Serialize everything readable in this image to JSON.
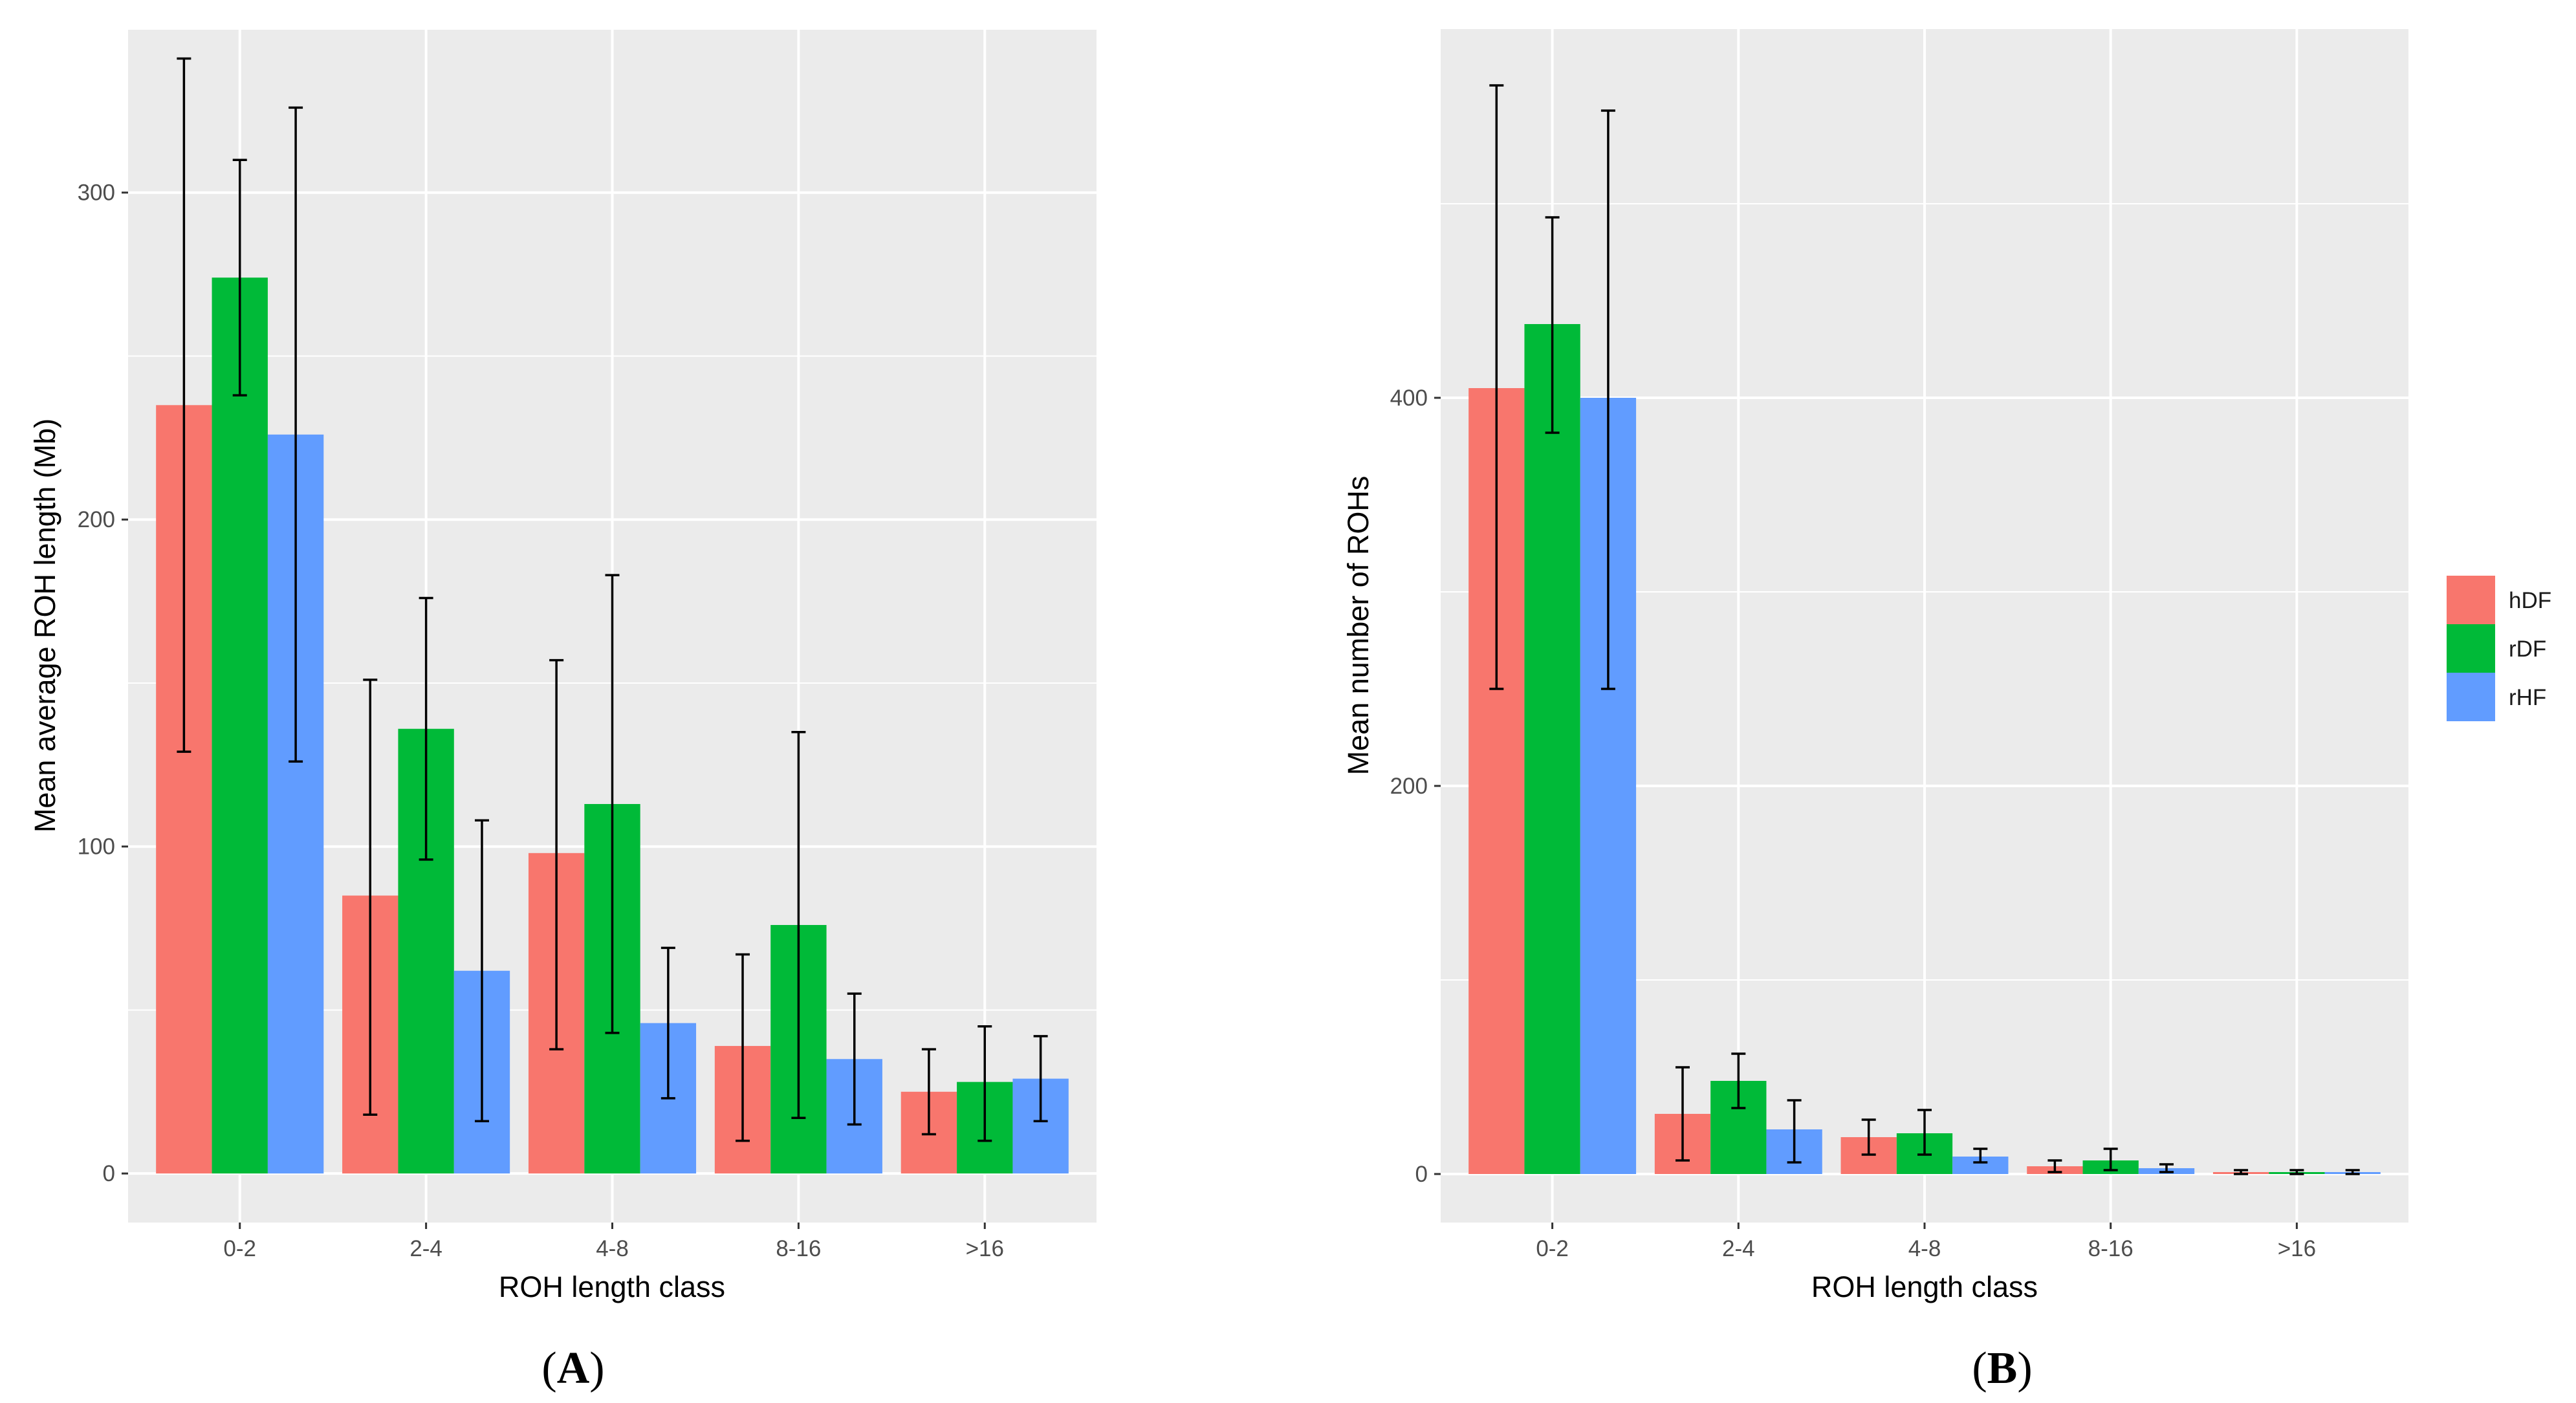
{
  "colors": {
    "hDF": "#F8766D",
    "rDF": "#00BA38",
    "rHF": "#619CFF",
    "panel_bg": "#EBEBEB",
    "grid": "#FFFFFF",
    "error_bar": "#000000"
  },
  "legend": {
    "entries": [
      "hDF",
      "rDF",
      "rHF"
    ],
    "placement": "right"
  },
  "chart_data": [
    {
      "type": "bar",
      "panel_label": {
        "open": "(",
        "letter": "A",
        "close": ")"
      },
      "title": "",
      "xlabel": "ROH length class",
      "ylabel": "Mean average ROH length (Mb)",
      "categories": [
        "0-2",
        "2-4",
        "4-8",
        "8-16",
        ">16"
      ],
      "ylim": [
        -15,
        350
      ],
      "y_ticks": [
        0,
        100,
        200,
        300
      ],
      "y_tick_labels": [
        "0",
        "100",
        "200",
        "300"
      ],
      "grid": true,
      "series": [
        {
          "name": "hDF",
          "values": [
            235,
            85,
            98,
            39,
            25
          ],
          "err_low": [
            129,
            18,
            38,
            10,
            12
          ],
          "err_high": [
            341,
            151,
            157,
            67,
            38
          ]
        },
        {
          "name": "rDF",
          "values": [
            274,
            136,
            113,
            76,
            28
          ],
          "err_low": [
            238,
            96,
            43,
            17,
            10
          ],
          "err_high": [
            310,
            176,
            183,
            135,
            45
          ]
        },
        {
          "name": "rHF",
          "values": [
            226,
            62,
            46,
            35,
            29
          ],
          "err_low": [
            126,
            16,
            23,
            15,
            16
          ],
          "err_high": [
            326,
            108,
            69,
            55,
            42
          ]
        }
      ]
    },
    {
      "type": "bar",
      "panel_label": {
        "open": "(",
        "letter": "B",
        "close": ")"
      },
      "title": "",
      "xlabel": "ROH length class",
      "ylabel": "Mean number of ROHs",
      "categories": [
        "0-2",
        "2-4",
        "4-8",
        "8-16",
        ">16"
      ],
      "ylim": [
        -25,
        590
      ],
      "y_ticks": [
        0,
        200,
        400
      ],
      "y_tick_labels": [
        "0",
        "200",
        "400"
      ],
      "grid": true,
      "series": [
        {
          "name": "hDF",
          "values": [
            405,
            31,
            19,
            4,
            1
          ],
          "err_low": [
            250,
            7,
            10,
            1,
            0
          ],
          "err_high": [
            561,
            55,
            28,
            7,
            2
          ]
        },
        {
          "name": "rDF",
          "values": [
            438,
            48,
            21,
            7,
            1
          ],
          "err_low": [
            382,
            34,
            10,
            2,
            0
          ],
          "err_high": [
            493,
            62,
            33,
            13,
            2
          ]
        },
        {
          "name": "rHF",
          "values": [
            400,
            23,
            9,
            3,
            1
          ],
          "err_low": [
            250,
            6,
            6,
            1,
            0
          ],
          "err_high": [
            548,
            38,
            13,
            5,
            2
          ]
        }
      ]
    }
  ]
}
